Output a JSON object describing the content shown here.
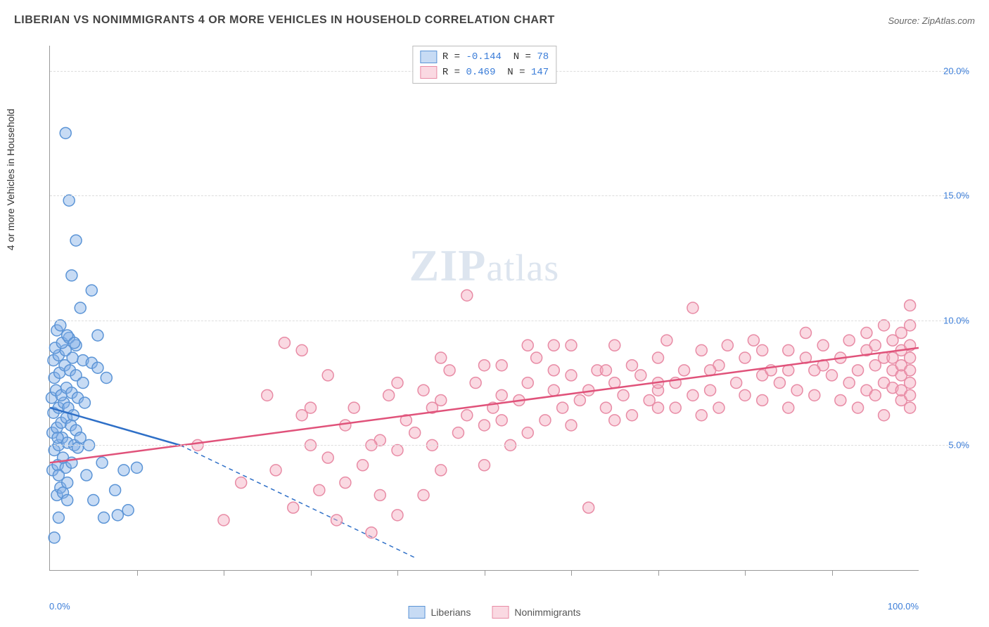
{
  "title": "LIBERIAN VS NONIMMIGRANTS 4 OR MORE VEHICLES IN HOUSEHOLD CORRELATION CHART",
  "source_label": "Source: ",
  "source_name": "ZipAtlas.com",
  "y_axis_label": "4 or more Vehicles in Household",
  "watermark_z": "ZIP",
  "watermark_rest": "atlas",
  "chart": {
    "type": "scatter-correlation",
    "background_color": "#ffffff",
    "grid_color": "#dddddd",
    "axis_color": "#999999",
    "tick_label_color": "#3b7dd8",
    "xlim": [
      0,
      100
    ],
    "ylim": [
      0,
      21
    ],
    "y_ticks": [
      {
        "value": 5,
        "label": "5.0%"
      },
      {
        "value": 10,
        "label": "10.0%"
      },
      {
        "value": 15,
        "label": "15.0%"
      },
      {
        "value": 20,
        "label": "20.0%"
      }
    ],
    "x_ticks_minor": [
      10,
      20,
      30,
      40,
      50,
      60,
      70,
      80,
      90
    ],
    "x_tick_labels": [
      {
        "value": 0,
        "label": "0.0%",
        "align": "left"
      },
      {
        "value": 100,
        "label": "100.0%",
        "align": "right"
      }
    ],
    "marker_radius": 8,
    "marker_stroke_width": 1.5,
    "line_width": 2.5,
    "dash_pattern": "6,5",
    "series": [
      {
        "name": "Liberians",
        "fill_color": "rgba(130,175,230,0.45)",
        "stroke_color": "#5b94d6",
        "line_color": "#2e6fc7",
        "r_value": "-0.144",
        "n_value": "78",
        "trend": {
          "x1": 0,
          "y1": 6.5,
          "x2": 15,
          "y2": 5.0,
          "extrap_x2": 42,
          "extrap_y2": 0.5
        },
        "points": [
          [
            0.5,
            1.3
          ],
          [
            1,
            2.1
          ],
          [
            0.8,
            3.0
          ],
          [
            1.2,
            3.3
          ],
          [
            1.5,
            3.1
          ],
          [
            2,
            3.5
          ],
          [
            0.3,
            4.0
          ],
          [
            0.9,
            4.2
          ],
          [
            1.8,
            4.1
          ],
          [
            2.5,
            4.3
          ],
          [
            0.5,
            4.8
          ],
          [
            1.0,
            5.0
          ],
          [
            1.4,
            5.3
          ],
          [
            2.0,
            5.1
          ],
          [
            2.8,
            5.0
          ],
          [
            3.2,
            4.9
          ],
          [
            0.3,
            5.5
          ],
          [
            0.8,
            5.7
          ],
          [
            1.3,
            5.9
          ],
          [
            1.9,
            6.1
          ],
          [
            2.4,
            5.8
          ],
          [
            3.0,
            5.6
          ],
          [
            3.5,
            5.3
          ],
          [
            0.4,
            6.3
          ],
          [
            1.0,
            6.5
          ],
          [
            1.6,
            6.7
          ],
          [
            2.1,
            6.5
          ],
          [
            2.7,
            6.2
          ],
          [
            0.2,
            6.9
          ],
          [
            0.7,
            7.2
          ],
          [
            1.3,
            7.0
          ],
          [
            1.9,
            7.3
          ],
          [
            2.5,
            7.1
          ],
          [
            3.2,
            6.9
          ],
          [
            4.0,
            6.7
          ],
          [
            0.5,
            7.7
          ],
          [
            1.1,
            7.9
          ],
          [
            1.7,
            8.2
          ],
          [
            2.3,
            8.0
          ],
          [
            3.0,
            7.8
          ],
          [
            0.4,
            8.4
          ],
          [
            1.0,
            8.6
          ],
          [
            1.8,
            8.8
          ],
          [
            2.6,
            8.5
          ],
          [
            3.8,
            8.4
          ],
          [
            4.8,
            8.3
          ],
          [
            0.6,
            8.9
          ],
          [
            1.4,
            9.1
          ],
          [
            2.2,
            9.3
          ],
          [
            3.0,
            9.0
          ],
          [
            5.5,
            8.1
          ],
          [
            6.5,
            7.7
          ],
          [
            0.8,
            9.6
          ],
          [
            2.0,
            9.4
          ],
          [
            5.5,
            9.4
          ],
          [
            1.2,
            9.8
          ],
          [
            2.8,
            9.1
          ],
          [
            4.2,
            3.8
          ],
          [
            5.0,
            2.8
          ],
          [
            6.2,
            2.1
          ],
          [
            7.8,
            2.2
          ],
          [
            9.0,
            2.4
          ],
          [
            0.9,
            5.3
          ],
          [
            1.5,
            4.5
          ],
          [
            8.5,
            4.0
          ],
          [
            3.5,
            10.5
          ],
          [
            4.8,
            11.2
          ],
          [
            2.5,
            11.8
          ],
          [
            3.0,
            13.2
          ],
          [
            2.2,
            14.8
          ],
          [
            1.8,
            17.5
          ],
          [
            1.0,
            3.8
          ],
          [
            6.0,
            4.3
          ],
          [
            4.5,
            5.0
          ],
          [
            7.5,
            3.2
          ],
          [
            3.8,
            7.5
          ],
          [
            2.0,
            2.8
          ],
          [
            10.0,
            4.1
          ]
        ]
      },
      {
        "name": "Nonimmigrants",
        "fill_color": "rgba(245,170,190,0.45)",
        "stroke_color": "#e88ba5",
        "line_color": "#e0527a",
        "r_value": "0.469",
        "n_value": "147",
        "trend": {
          "x1": 0,
          "y1": 4.3,
          "x2": 100,
          "y2": 8.9
        },
        "points": [
          [
            17,
            5.0
          ],
          [
            20,
            2.0
          ],
          [
            22,
            3.5
          ],
          [
            25,
            7.0
          ],
          [
            26,
            4.0
          ],
          [
            27,
            9.1
          ],
          [
            28,
            2.5
          ],
          [
            29,
            6.2
          ],
          [
            29,
            8.8
          ],
          [
            30,
            5.0
          ],
          [
            31,
            3.2
          ],
          [
            32,
            4.5
          ],
          [
            32,
            7.8
          ],
          [
            33,
            2.0
          ],
          [
            34,
            5.8
          ],
          [
            34,
            3.5
          ],
          [
            35,
            6.5
          ],
          [
            36,
            4.2
          ],
          [
            37,
            1.5
          ],
          [
            38,
            5.2
          ],
          [
            38,
            3.0
          ],
          [
            39,
            7.0
          ],
          [
            40,
            4.8
          ],
          [
            40,
            2.2
          ],
          [
            41,
            6.0
          ],
          [
            42,
            5.5
          ],
          [
            43,
            3.0
          ],
          [
            43,
            7.2
          ],
          [
            44,
            5.0
          ],
          [
            45,
            6.8
          ],
          [
            45,
            4.0
          ],
          [
            46,
            8.0
          ],
          [
            47,
            5.5
          ],
          [
            48,
            6.2
          ],
          [
            48,
            11.0
          ],
          [
            49,
            7.5
          ],
          [
            50,
            5.8
          ],
          [
            50,
            4.2
          ],
          [
            51,
            6.5
          ],
          [
            52,
            7.0
          ],
          [
            52,
            8.2
          ],
          [
            53,
            5.0
          ],
          [
            54,
            6.8
          ],
          [
            55,
            7.5
          ],
          [
            55,
            5.5
          ],
          [
            56,
            8.5
          ],
          [
            57,
            6.0
          ],
          [
            58,
            7.2
          ],
          [
            58,
            8.0
          ],
          [
            59,
            6.5
          ],
          [
            60,
            7.8
          ],
          [
            60,
            5.8
          ],
          [
            61,
            6.8
          ],
          [
            62,
            7.2
          ],
          [
            62,
            2.5
          ],
          [
            63,
            8.0
          ],
          [
            64,
            6.5
          ],
          [
            65,
            7.5
          ],
          [
            65,
            9.0
          ],
          [
            66,
            7.0
          ],
          [
            67,
            8.2
          ],
          [
            67,
            6.2
          ],
          [
            68,
            7.8
          ],
          [
            69,
            6.8
          ],
          [
            70,
            8.5
          ],
          [
            70,
            7.2
          ],
          [
            71,
            9.2
          ],
          [
            72,
            7.5
          ],
          [
            72,
            6.5
          ],
          [
            73,
            8.0
          ],
          [
            74,
            7.0
          ],
          [
            74,
            10.5
          ],
          [
            75,
            8.8
          ],
          [
            76,
            7.2
          ],
          [
            77,
            6.5
          ],
          [
            77,
            8.2
          ],
          [
            78,
            9.0
          ],
          [
            79,
            7.5
          ],
          [
            80,
            7.0
          ],
          [
            80,
            8.5
          ],
          [
            81,
            9.2
          ],
          [
            82,
            7.8
          ],
          [
            82,
            6.8
          ],
          [
            83,
            8.0
          ],
          [
            84,
            7.5
          ],
          [
            85,
            8.8
          ],
          [
            85,
            6.5
          ],
          [
            86,
            7.2
          ],
          [
            87,
            8.5
          ],
          [
            87,
            9.5
          ],
          [
            88,
            7.0
          ],
          [
            89,
            8.2
          ],
          [
            89,
            9.0
          ],
          [
            90,
            7.8
          ],
          [
            91,
            8.5
          ],
          [
            91,
            6.8
          ],
          [
            92,
            9.2
          ],
          [
            92,
            7.5
          ],
          [
            93,
            8.0
          ],
          [
            93,
            6.5
          ],
          [
            94,
            8.8
          ],
          [
            94,
            7.2
          ],
          [
            94,
            9.5
          ],
          [
            95,
            8.2
          ],
          [
            95,
            7.0
          ],
          [
            95,
            9.0
          ],
          [
            96,
            8.5
          ],
          [
            96,
            7.5
          ],
          [
            96,
            6.2
          ],
          [
            96,
            9.8
          ],
          [
            97,
            8.0
          ],
          [
            97,
            7.3
          ],
          [
            97,
            8.5
          ],
          [
            97,
            9.2
          ],
          [
            98,
            7.8
          ],
          [
            98,
            8.8
          ],
          [
            98,
            6.8
          ],
          [
            98,
            9.5
          ],
          [
            98,
            7.2
          ],
          [
            98,
            8.2
          ],
          [
            99,
            9.0
          ],
          [
            99,
            7.5
          ],
          [
            99,
            8.5
          ],
          [
            99,
            6.5
          ],
          [
            99,
            9.8
          ],
          [
            99,
            8.0
          ],
          [
            99,
            7.0
          ],
          [
            99,
            10.6
          ],
          [
            37,
            5.0
          ],
          [
            44,
            6.5
          ],
          [
            52,
            6.0
          ],
          [
            58,
            9.0
          ],
          [
            64,
            8.0
          ],
          [
            70,
            6.5
          ],
          [
            76,
            8.0
          ],
          [
            82,
            8.8
          ],
          [
            88,
            8.0
          ],
          [
            45,
            8.5
          ],
          [
            55,
            9.0
          ],
          [
            65,
            6.0
          ],
          [
            75,
            6.2
          ],
          [
            85,
            8.0
          ],
          [
            30,
            6.5
          ],
          [
            40,
            7.5
          ],
          [
            50,
            8.2
          ],
          [
            60,
            9.0
          ],
          [
            70,
            7.5
          ]
        ]
      }
    ]
  },
  "legend_top": {
    "r_label": "R =",
    "n_label": "N ="
  },
  "legend_bottom": {
    "items": [
      "Liberians",
      "Nonimmigrants"
    ]
  }
}
